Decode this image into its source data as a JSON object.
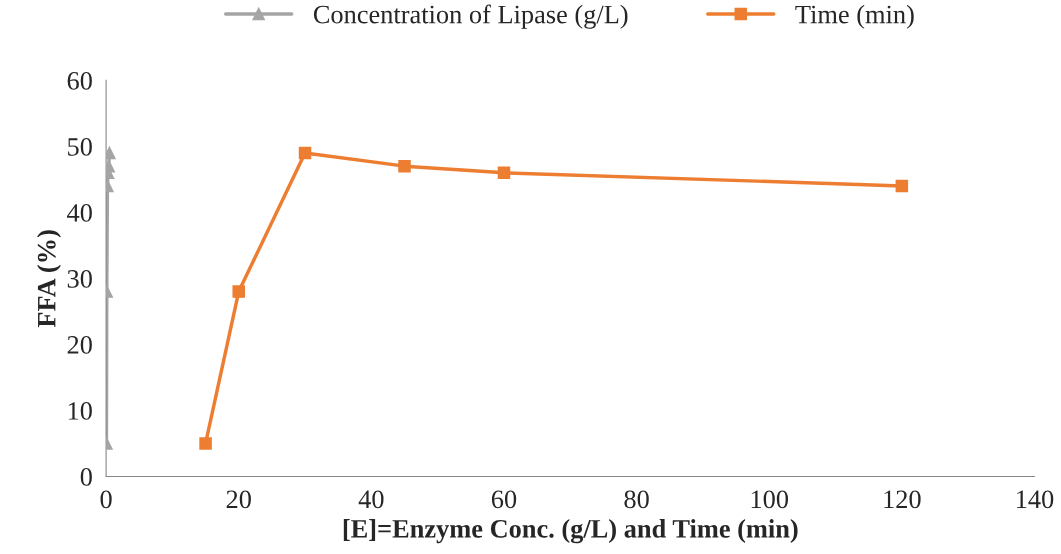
{
  "chart_data": {
    "type": "line",
    "xlabel": "[E]=Enzyme Conc. (g/L) and Time (min)",
    "ylabel": "FFA (%)",
    "series": [
      {
        "name": "Concentration of Lipase (g/L)",
        "color": "#a5a5a5",
        "marker": "triangle",
        "x": [
          0.05,
          0.1,
          0.2,
          0.3,
          0.4,
          0.5
        ],
        "values": [
          5,
          28,
          44,
          46,
          47,
          49
        ]
      },
      {
        "name": "Time (min)",
        "color": "#ed7d31",
        "marker": "square",
        "x": [
          15,
          20,
          30,
          45,
          60,
          120
        ],
        "values": [
          5,
          28,
          49,
          47,
          46,
          44
        ]
      }
    ],
    "xlim": [
      0,
      140
    ],
    "xticks": [
      0,
      20,
      40,
      60,
      80,
      100,
      120,
      140
    ],
    "ylim": [
      0,
      60
    ],
    "yticks": [
      0,
      10,
      20,
      30,
      40,
      50,
      60
    ],
    "grid": false,
    "legend": "top",
    "line_style": "solid"
  }
}
